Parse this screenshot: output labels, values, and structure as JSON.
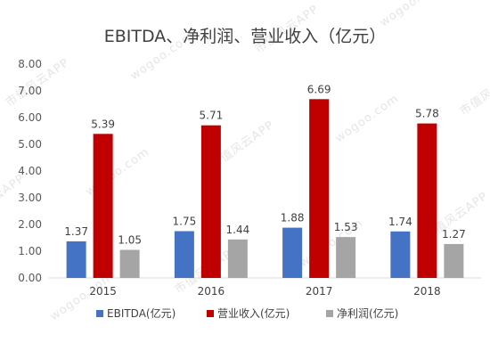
{
  "chart_data": {
    "type": "bar",
    "title": "EBITDA、净利润、营业收入（亿元）",
    "categories": [
      "2015",
      "2016",
      "2017",
      "2018"
    ],
    "series": [
      {
        "name": "EBITDA(亿元)",
        "color": "#4472C4",
        "values": [
          1.37,
          1.75,
          1.88,
          1.74
        ],
        "labels": [
          "1.37",
          "1.75",
          "1.88",
          "1.74"
        ]
      },
      {
        "name": "营业收入(亿元)",
        "color": "#C00000",
        "values": [
          5.39,
          5.71,
          6.69,
          5.78
        ],
        "labels": [
          "5.39",
          "5.71",
          "6.69",
          "5.78"
        ]
      },
      {
        "name": "净利润(亿元)",
        "color": "#A5A5A5",
        "values": [
          1.05,
          1.44,
          1.53,
          1.27
        ],
        "labels": [
          "1.05",
          "1.44",
          "1.53",
          "1.27"
        ]
      }
    ],
    "ylim": [
      0,
      8
    ],
    "yticks": [
      "0.00",
      "1.00",
      "2.00",
      "3.00",
      "4.00",
      "5.00",
      "6.00",
      "7.00",
      "8.00"
    ],
    "grid": false,
    "legend": "bottom"
  },
  "watermark": {
    "text": "市值风云APP",
    "url_text": "wogoo.com"
  }
}
